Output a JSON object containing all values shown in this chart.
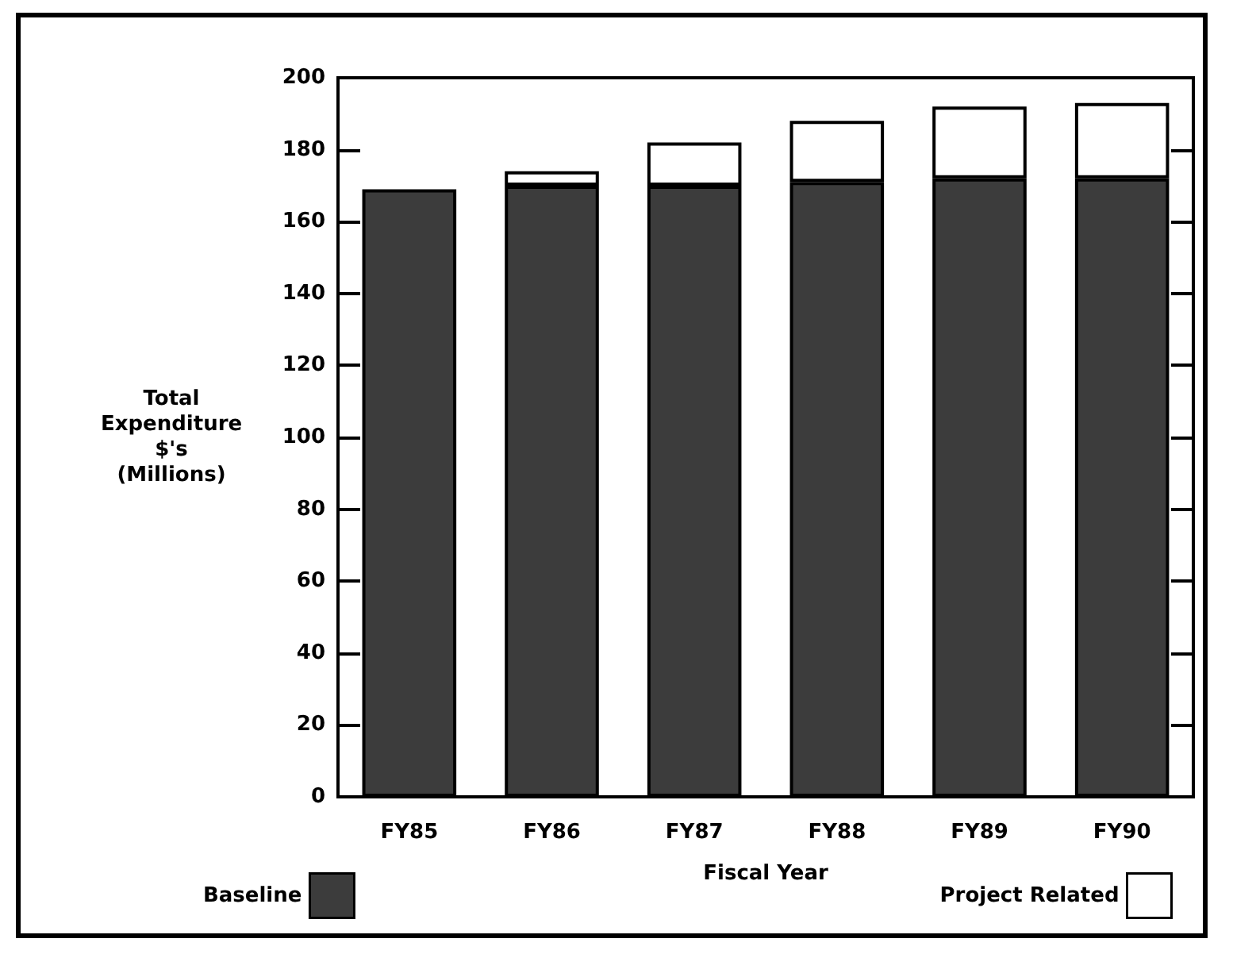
{
  "chart_data": {
    "type": "bar",
    "stacked": true,
    "xlabel": "Fiscal Year",
    "ylabel": "Total\nExpenditure\n$'s\n(Millions)",
    "categories": [
      "FY85",
      "FY86",
      "FY87",
      "FY88",
      "FY89",
      "FY90"
    ],
    "series": [
      {
        "name": "Baseline",
        "color": "#3c3c3c",
        "values": [
          169,
          170,
          170,
          171,
          172,
          172
        ]
      },
      {
        "name": "Project Related",
        "color": "#ffffff",
        "values": [
          null,
          4,
          12,
          17,
          20,
          21
        ]
      }
    ],
    "ylim": [
      0,
      200
    ],
    "yticks": [
      0,
      20,
      40,
      60,
      80,
      100,
      120,
      140,
      160,
      180,
      200
    ],
    "grid": false,
    "legend": "bottom"
  }
}
